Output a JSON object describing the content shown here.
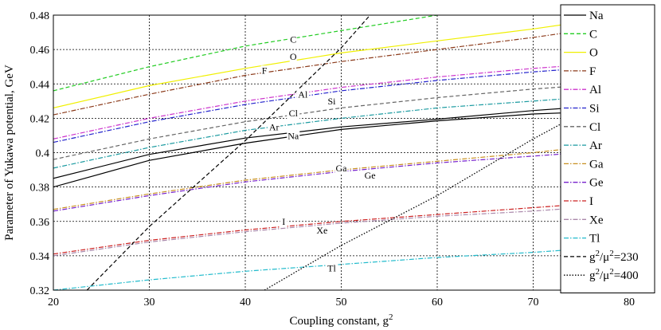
{
  "chart_data": {
    "type": "line",
    "title": "",
    "xlabel": "Coupling constant, g",
    "xlabel_sup": "2",
    "ylabel": "Parameter of Yukawa potential, GeV",
    "xlim": [
      20,
      80
    ],
    "ylim": [
      0.32,
      0.48
    ],
    "x_ticks": [
      20,
      30,
      40,
      50,
      60,
      70,
      80
    ],
    "y_ticks": [
      0.32,
      0.34,
      0.36,
      0.38,
      0.4,
      0.42,
      0.44,
      0.46,
      0.48
    ],
    "y_tick_labels": [
      "0.32",
      "0.34",
      "0.36",
      "0.38",
      "0.4",
      "0.42",
      "0.44",
      "0.46",
      "0.48"
    ],
    "grid": true,
    "legend_position": "right",
    "series": [
      {
        "name": "Na",
        "color": "#000000",
        "dash": "solid",
        "x": [
          20,
          30,
          40,
          50,
          60,
          70,
          75
        ],
        "y": [
          0.38,
          0.3955,
          0.4055,
          0.4135,
          0.4185,
          0.4225,
          0.4235
        ],
        "x2": [
          20,
          30,
          40,
          50,
          60,
          70,
          75
        ],
        "y2": [
          0.385,
          0.399,
          0.4085,
          0.415,
          0.4195,
          0.4245,
          0.4265
        ],
        "label_at": [
          45,
          0.408
        ]
      },
      {
        "name": "C",
        "color": "#22cc22",
        "dash": "dashed",
        "x": [
          20,
          30,
          40,
          50,
          60
        ],
        "y": [
          0.436,
          0.45,
          0.462,
          0.471,
          0.48
        ],
        "label_at": [
          45,
          0.464
        ]
      },
      {
        "name": "O",
        "color": "#f0f000",
        "dash": "solid",
        "x": [
          20,
          30,
          40,
          50,
          60,
          70,
          75
        ],
        "y": [
          0.426,
          0.439,
          0.449,
          0.458,
          0.465,
          0.472,
          0.476
        ],
        "label_at": [
          45,
          0.454
        ]
      },
      {
        "name": "F",
        "color": "#8b3a1a",
        "dash": "dashdot",
        "x": [
          20,
          30,
          40,
          50,
          60,
          70,
          75
        ],
        "y": [
          0.422,
          0.434,
          0.445,
          0.453,
          0.46,
          0.467,
          0.471
        ],
        "label_at": [
          42,
          0.446
        ]
      },
      {
        "name": "Al",
        "color": "#cc33cc",
        "dash": "dashdot",
        "x": [
          20,
          30,
          40,
          50,
          60,
          70,
          75
        ],
        "y": [
          0.408,
          0.42,
          0.43,
          0.438,
          0.444,
          0.449,
          0.451
        ],
        "label_at": [
          46,
          0.432
        ]
      },
      {
        "name": "Si",
        "color": "#2222cc",
        "dash": "dashdot",
        "x": [
          20,
          30,
          40,
          50,
          60,
          70,
          75
        ],
        "y": [
          0.406,
          0.418,
          0.428,
          0.436,
          0.442,
          0.447,
          0.449
        ],
        "label_at": [
          49,
          0.428
        ]
      },
      {
        "name": "Cl",
        "color": "#666666",
        "dash": "dashed",
        "x": [
          20,
          30,
          40,
          50,
          60,
          70,
          75
        ],
        "y": [
          0.396,
          0.408,
          0.418,
          0.426,
          0.432,
          0.437,
          0.439
        ],
        "label_at": [
          45,
          0.421
        ]
      },
      {
        "name": "Ar",
        "color": "#1a9aa0",
        "dash": "dashdot",
        "x": [
          20,
          30,
          40,
          50,
          60,
          70,
          75
        ],
        "y": [
          0.391,
          0.403,
          0.413,
          0.42,
          0.426,
          0.43,
          0.432
        ],
        "label_at": [
          43,
          0.413
        ]
      },
      {
        "name": "Ga",
        "color": "#c89020",
        "dash": "dashdot",
        "x": [
          20,
          30,
          40,
          50,
          60,
          70,
          75
        ],
        "y": [
          0.367,
          0.376,
          0.384,
          0.39,
          0.395,
          0.4,
          0.403
        ],
        "label_at": [
          50,
          0.389
        ]
      },
      {
        "name": "Ge",
        "color": "#7722cc",
        "dash": "dashdot",
        "x": [
          20,
          30,
          40,
          50,
          60,
          70,
          75
        ],
        "y": [
          0.366,
          0.375,
          0.383,
          0.389,
          0.394,
          0.398,
          0.4
        ],
        "label_at": [
          53,
          0.385
        ]
      },
      {
        "name": "I",
        "color": "#cc2222",
        "dash": "dashdot",
        "x": [
          20,
          30,
          40,
          50,
          60,
          70,
          75
        ],
        "y": [
          0.341,
          0.349,
          0.355,
          0.36,
          0.364,
          0.368,
          0.37
        ],
        "label_at": [
          44,
          0.358
        ]
      },
      {
        "name": "Xe",
        "color": "#aa88aa",
        "dash": "dashdot",
        "x": [
          20,
          30,
          40,
          50,
          60,
          70,
          75
        ],
        "y": [
          0.34,
          0.348,
          0.354,
          0.359,
          0.363,
          0.366,
          0.368
        ],
        "label_at": [
          48,
          0.353
        ]
      },
      {
        "name": "Tl",
        "color": "#22bbcc",
        "dash": "dashdot",
        "x": [
          20,
          30,
          40,
          50,
          60,
          70,
          75
        ],
        "y": [
          0.32,
          0.326,
          0.331,
          0.335,
          0.339,
          0.342,
          0.344
        ],
        "label_at": [
          49,
          0.331
        ]
      },
      {
        "name": "g²/μ²=230",
        "color": "#000000",
        "dash": "dashed",
        "x": [
          23.5,
          30,
          40,
          50,
          53
        ],
        "y": [
          0.32,
          0.357,
          0.407,
          0.461,
          0.48
        ]
      },
      {
        "name": "g²/μ²=400",
        "color": "#000000",
        "dash": "dotted",
        "x": [
          42,
          50,
          60,
          70,
          75
        ],
        "y": [
          0.32,
          0.346,
          0.375,
          0.408,
          0.423
        ]
      }
    ]
  },
  "legend": [
    {
      "name": "Na",
      "color": "#000000",
      "dash": "solid"
    },
    {
      "name": "C",
      "color": "#22cc22",
      "dash": "dashed"
    },
    {
      "name": "O",
      "color": "#f0f000",
      "dash": "solid"
    },
    {
      "name": "F",
      "color": "#8b3a1a",
      "dash": "dashdot"
    },
    {
      "name": "Al",
      "color": "#cc33cc",
      "dash": "dashdot"
    },
    {
      "name": "Si",
      "color": "#2222cc",
      "dash": "dashdot"
    },
    {
      "name": "Cl",
      "color": "#666666",
      "dash": "dashed"
    },
    {
      "name": "Ar",
      "color": "#1a9aa0",
      "dash": "dashdot"
    },
    {
      "name": "Ga",
      "color": "#c89020",
      "dash": "dashdot"
    },
    {
      "name": "Ge",
      "color": "#7722cc",
      "dash": "dashdot"
    },
    {
      "name": "I",
      "color": "#cc2222",
      "dash": "dashdot"
    },
    {
      "name": "Xe",
      "color": "#aa88aa",
      "dash": "dashdot"
    },
    {
      "name": "Tl",
      "color": "#22bbcc",
      "dash": "dashdot"
    },
    {
      "name": "g",
      "sup1": "2",
      "mid": "/μ",
      "sup2": "2",
      "tail": "=230",
      "color": "#000000",
      "dash": "dashed"
    },
    {
      "name": "g",
      "sup1": "2",
      "mid": "/μ",
      "sup2": "2",
      "tail": "=400",
      "color": "#000000",
      "dash": "dotted"
    }
  ]
}
